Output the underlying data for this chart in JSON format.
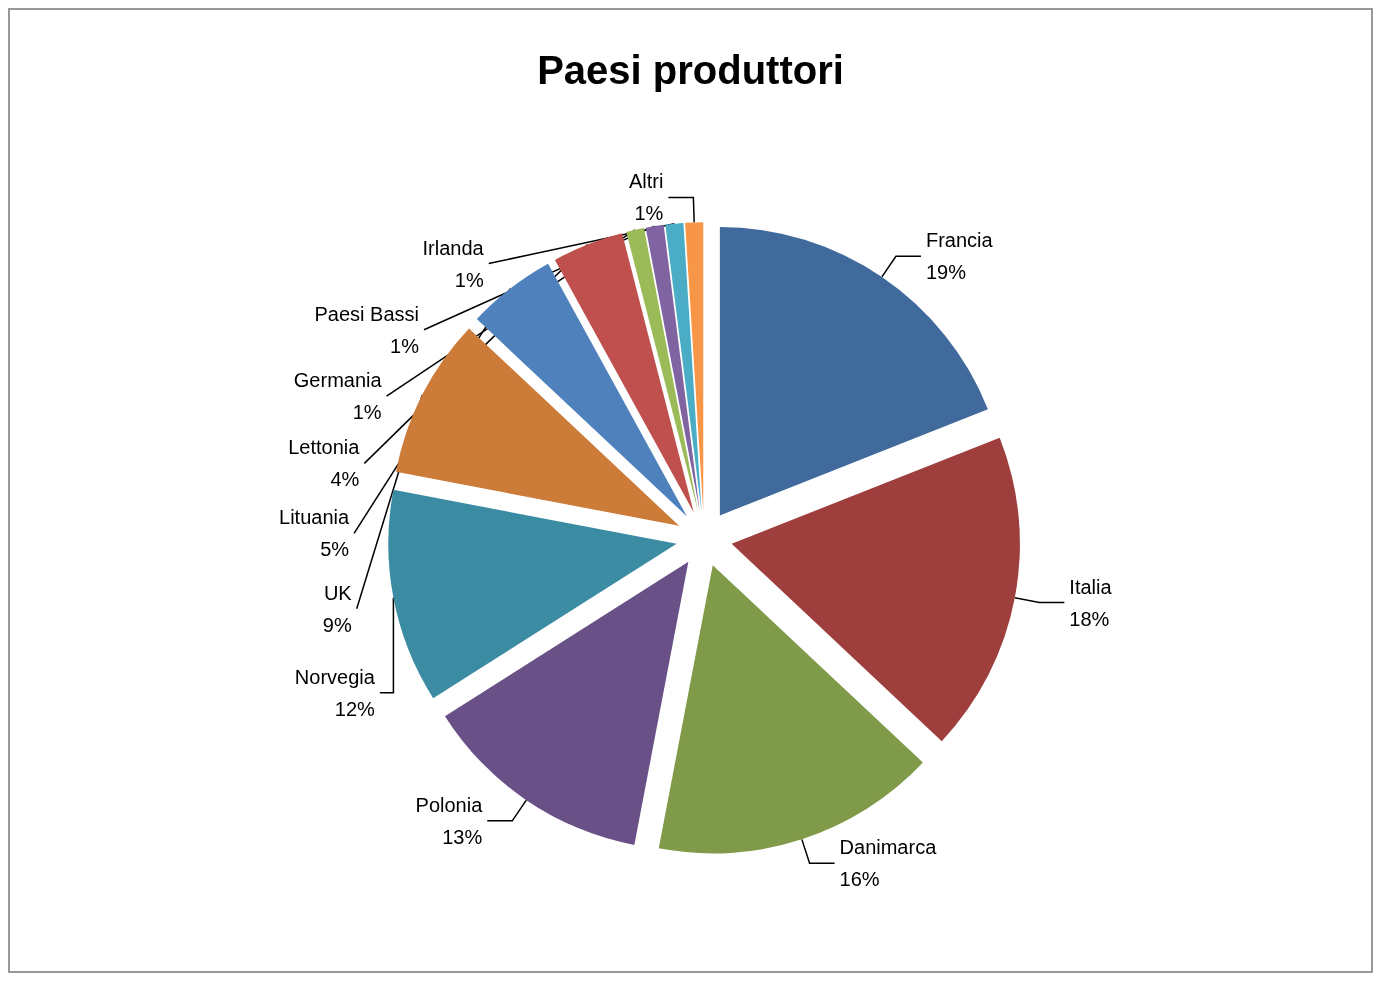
{
  "chart_data": {
    "type": "pie",
    "title": "Paesi produttori",
    "categories": [
      "Francia",
      "Italia",
      "Danimarca",
      "Polonia",
      "Norvegia",
      "UK",
      "Lituania",
      "Lettonia",
      "Germania",
      "Paesi Bassi",
      "Irlanda",
      "Altri"
    ],
    "values": [
      19,
      18,
      16,
      13,
      12,
      9,
      5,
      4,
      1,
      1,
      1,
      1
    ],
    "value_labels": [
      "19%",
      "18%",
      "16%",
      "13%",
      "12%",
      "9%",
      "5%",
      "4%",
      "1%",
      "1%",
      "1%",
      "1%"
    ],
    "colors": [
      "#406a9c",
      "#9e3f3d",
      "#7f9a48",
      "#695087",
      "#3b8ba3",
      "#cc7b38",
      "#4f81bd",
      "#c0504d",
      "#9bbb59",
      "#8064a2",
      "#4bacc6",
      "#f79646"
    ],
    "legend": false
  }
}
